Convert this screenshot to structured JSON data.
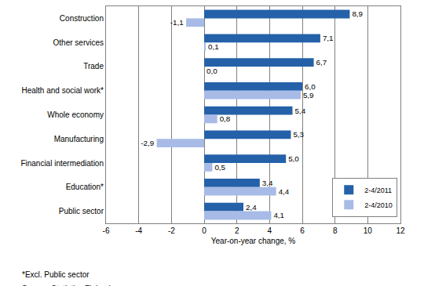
{
  "chart_data": {
    "type": "bar",
    "orientation": "horizontal",
    "categories": [
      "Construction",
      "Other services",
      "Trade",
      "Health and social work*",
      "Whole economy",
      "Manufacturing",
      "Financial intermediation",
      "Education*",
      "Public sector"
    ],
    "series": [
      {
        "name": "2-4/2011",
        "color": "#2461a8",
        "values": [
          8.9,
          7.1,
          6.7,
          6.0,
          5.4,
          5.3,
          5.0,
          3.4,
          2.4
        ],
        "value_labels": [
          "8,9",
          "7,1",
          "6,7",
          "6,0",
          "5,4",
          "5,3",
          "5,0",
          "3,4",
          "2,4"
        ]
      },
      {
        "name": "2-4/2010",
        "color": "#a7bbe6",
        "values": [
          -1.1,
          0.1,
          0.0,
          5.9,
          0.8,
          -2.9,
          0.5,
          4.4,
          4.1
        ],
        "value_labels": [
          "-1,1",
          "0,1",
          "0,0",
          "5,9",
          "0,8",
          "-2,9",
          "0,5",
          "4,4",
          "4,1"
        ]
      }
    ],
    "x_label": "Year-on-year change, %",
    "xlim": [
      -6,
      12
    ],
    "xticks": [
      -6,
      -4,
      -2,
      0,
      2,
      4,
      6,
      8,
      10,
      12
    ],
    "grid": true,
    "data_labels": true,
    "legend": "lower right",
    "annotations": [
      "*Excl. Public sector",
      "Source: Statistics Finland"
    ]
  }
}
